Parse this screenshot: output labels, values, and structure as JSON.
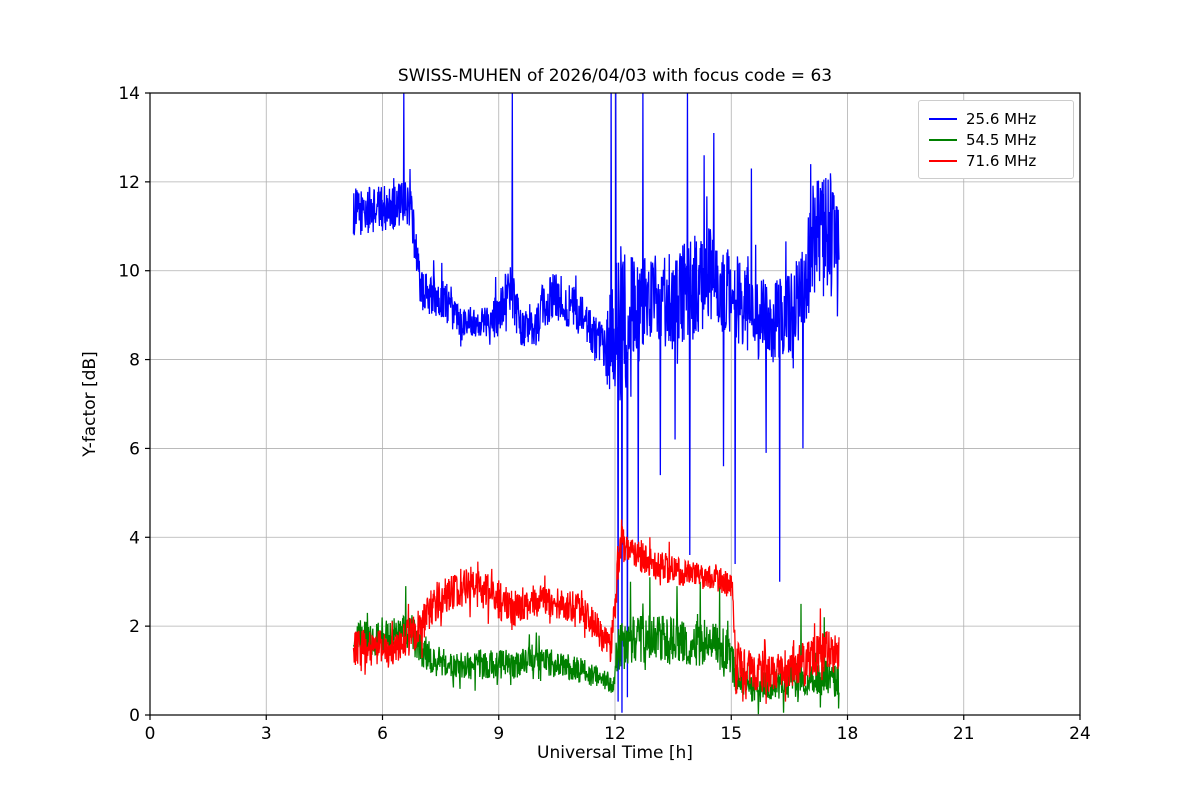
{
  "chart_data": {
    "type": "line",
    "title": "SWISS-MUHEN of 2026/04/03 with focus code = 63",
    "xlabel": "Universal Time [h]",
    "ylabel": "Y-factor [dB]",
    "xlim": [
      0,
      24
    ],
    "ylim": [
      0,
      14
    ],
    "xticks": [
      0,
      3,
      6,
      9,
      12,
      15,
      18,
      21,
      24
    ],
    "yticks": [
      0,
      2,
      4,
      6,
      8,
      10,
      12,
      14
    ],
    "grid": true,
    "grid_color": "#b0b0b0",
    "background": "#ffffff",
    "legend_position": "upper right",
    "step": 0.01,
    "series": [
      {
        "name": "25.6 MHz",
        "color": "#0000ff",
        "t_start": 5.25,
        "t_end": 17.78,
        "profile": [
          [
            5.25,
            11.3,
            0.55
          ],
          [
            6.3,
            11.45,
            0.5
          ],
          [
            6.7,
            11.5,
            0.55
          ],
          [
            6.85,
            10.6,
            0.5
          ],
          [
            7.0,
            9.55,
            0.45
          ],
          [
            7.6,
            9.35,
            0.5
          ],
          [
            7.95,
            8.9,
            0.35
          ],
          [
            8.6,
            8.85,
            0.35
          ],
          [
            9.0,
            9.1,
            0.5
          ],
          [
            9.3,
            9.7,
            0.6
          ],
          [
            9.55,
            8.75,
            0.45
          ],
          [
            9.9,
            8.6,
            0.45
          ],
          [
            10.2,
            9.3,
            0.6
          ],
          [
            10.6,
            9.4,
            0.6
          ],
          [
            11.0,
            9.1,
            0.5
          ],
          [
            11.4,
            8.6,
            0.5
          ],
          [
            11.75,
            8.1,
            0.6
          ],
          [
            11.95,
            8.6,
            1.8
          ],
          [
            12.2,
            8.8,
            1.8
          ],
          [
            12.5,
            9.2,
            1.1
          ],
          [
            13.0,
            9.4,
            1.0
          ],
          [
            13.5,
            9.3,
            1.1
          ],
          [
            14.0,
            9.6,
            1.2
          ],
          [
            14.5,
            9.8,
            1.2
          ],
          [
            15.0,
            9.5,
            1.0
          ],
          [
            15.5,
            9.0,
            1.0
          ],
          [
            16.0,
            8.8,
            0.9
          ],
          [
            16.5,
            9.0,
            1.0
          ],
          [
            16.9,
            9.6,
            1.1
          ],
          [
            17.15,
            10.8,
            1.4
          ],
          [
            17.5,
            10.9,
            1.5
          ],
          [
            17.78,
            10.2,
            1.5
          ]
        ],
        "spikes": [
          [
            6.55,
            14
          ],
          [
            9.35,
            14
          ],
          [
            11.9,
            14
          ],
          [
            12.02,
            14
          ],
          [
            12.08,
            0.3
          ],
          [
            12.18,
            0.05
          ],
          [
            12.32,
            0.4
          ],
          [
            12.6,
            3.8
          ],
          [
            12.72,
            14
          ],
          [
            13.17,
            5.4
          ],
          [
            13.55,
            6.2
          ],
          [
            13.87,
            14
          ],
          [
            13.93,
            3.6
          ],
          [
            14.3,
            12.6
          ],
          [
            14.55,
            13.1
          ],
          [
            14.8,
            5.6
          ],
          [
            15.1,
            3.4
          ],
          [
            15.52,
            12.3
          ],
          [
            15.9,
            5.9
          ],
          [
            16.25,
            3.0
          ],
          [
            16.85,
            6.0
          ],
          [
            17.05,
            12.4
          ]
        ]
      },
      {
        "name": "54.5 MHz",
        "color": "#008000",
        "t_start": 5.25,
        "t_end": 17.78,
        "profile": [
          [
            5.25,
            1.8,
            0.4
          ],
          [
            5.8,
            1.7,
            0.35
          ],
          [
            6.3,
            1.8,
            0.4
          ],
          [
            6.7,
            1.9,
            0.45
          ],
          [
            7.0,
            1.5,
            0.4
          ],
          [
            7.4,
            1.2,
            0.35
          ],
          [
            8.0,
            1.1,
            0.3
          ],
          [
            8.7,
            1.15,
            0.35
          ],
          [
            9.4,
            1.15,
            0.35
          ],
          [
            10.0,
            1.3,
            0.35
          ],
          [
            10.6,
            1.1,
            0.3
          ],
          [
            11.2,
            1.0,
            0.3
          ],
          [
            11.6,
            0.85,
            0.25
          ],
          [
            11.95,
            0.65,
            0.2
          ],
          [
            12.1,
            1.5,
            0.55
          ],
          [
            12.6,
            1.7,
            0.55
          ],
          [
            13.2,
            1.7,
            0.55
          ],
          [
            13.8,
            1.6,
            0.5
          ],
          [
            14.4,
            1.6,
            0.55
          ],
          [
            14.95,
            1.4,
            0.5
          ],
          [
            15.15,
            0.75,
            0.35
          ],
          [
            15.7,
            0.6,
            0.35
          ],
          [
            16.2,
            0.7,
            0.35
          ],
          [
            16.7,
            0.8,
            0.4
          ],
          [
            17.2,
            0.85,
            0.4
          ],
          [
            17.78,
            0.8,
            0.4
          ]
        ],
        "spikes": [
          [
            6.6,
            2.9
          ],
          [
            11.9,
            0.5
          ],
          [
            12.4,
            3.0
          ],
          [
            12.9,
            3.1
          ],
          [
            13.6,
            2.9
          ],
          [
            14.2,
            3.0
          ],
          [
            14.7,
            2.9
          ],
          [
            15.7,
            0.02
          ],
          [
            16.35,
            0.05
          ],
          [
            16.8,
            2.5
          ],
          [
            17.4,
            2.2
          ]
        ]
      },
      {
        "name": "71.6 MHz",
        "color": "#ff0000",
        "t_start": 5.25,
        "t_end": 17.78,
        "profile": [
          [
            5.25,
            1.5,
            0.45
          ],
          [
            5.8,
            1.5,
            0.4
          ],
          [
            6.4,
            1.55,
            0.4
          ],
          [
            6.9,
            1.9,
            0.45
          ],
          [
            7.3,
            2.5,
            0.45
          ],
          [
            7.8,
            2.8,
            0.45
          ],
          [
            8.3,
            2.9,
            0.45
          ],
          [
            8.8,
            2.7,
            0.45
          ],
          [
            9.3,
            2.4,
            0.45
          ],
          [
            9.7,
            2.5,
            0.4
          ],
          [
            10.1,
            2.6,
            0.35
          ],
          [
            10.6,
            2.5,
            0.35
          ],
          [
            11.1,
            2.4,
            0.35
          ],
          [
            11.5,
            2.0,
            0.35
          ],
          [
            11.9,
            1.5,
            0.35
          ],
          [
            12.05,
            3.0,
            0.5
          ],
          [
            12.15,
            3.9,
            0.4
          ],
          [
            12.4,
            3.7,
            0.35
          ],
          [
            12.8,
            3.5,
            0.35
          ],
          [
            13.3,
            3.3,
            0.35
          ],
          [
            13.8,
            3.2,
            0.3
          ],
          [
            14.3,
            3.1,
            0.3
          ],
          [
            14.8,
            3.0,
            0.3
          ],
          [
            15.02,
            2.9,
            0.3
          ],
          [
            15.12,
            1.2,
            0.45
          ],
          [
            15.6,
            1.0,
            0.45
          ],
          [
            16.1,
            1.0,
            0.45
          ],
          [
            16.6,
            1.1,
            0.45
          ],
          [
            17.1,
            1.3,
            0.45
          ],
          [
            17.5,
            1.45,
            0.45
          ],
          [
            17.78,
            1.3,
            0.45
          ]
        ],
        "spikes": [
          [
            12.17,
            4.4
          ],
          [
            12.9,
            4.0
          ],
          [
            13.4,
            3.9
          ],
          [
            15.3,
            0.3
          ],
          [
            15.9,
            0.25
          ],
          [
            16.4,
            0.3
          ],
          [
            17.3,
            2.4
          ]
        ]
      }
    ]
  }
}
